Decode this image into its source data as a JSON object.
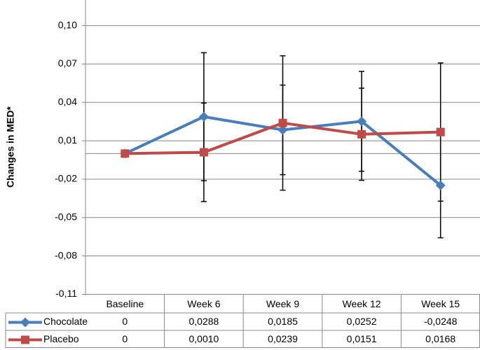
{
  "chart_data": {
    "type": "line",
    "y_label": "Changes in MED*",
    "categories": [
      "Baseline",
      "Week 6",
      "Week 9",
      "Week 12",
      "Week 15"
    ],
    "series": [
      {
        "name": "Chocolate",
        "color": "#4a7ebb",
        "marker": "diamond",
        "values": [
          0,
          0.0288,
          0.0185,
          0.0252,
          -0.0248
        ],
        "value_labels": [
          "0",
          "0,0288",
          "0,0185",
          "0,0252",
          "-0,0248"
        ],
        "errors": [
          null,
          0.05,
          0.035,
          0.039,
          0.041
        ]
      },
      {
        "name": "Placebo",
        "color": "#be4b48",
        "marker": "square",
        "values": [
          0,
          0.001,
          0.0239,
          0.0151,
          0.0168
        ],
        "value_labels": [
          "0",
          "0,0010",
          "0,0239",
          "0,0151",
          "0,0168"
        ],
        "errors": [
          null,
          0.0385,
          0.0525,
          0.036,
          0.054
        ]
      }
    ],
    "ylim": [
      -0.11,
      0.12
    ],
    "yticks": [
      {
        "value": 0.1,
        "label": "0,10"
      },
      {
        "value": 0.07,
        "label": "0,07"
      },
      {
        "value": 0.04,
        "label": "0,04"
      },
      {
        "value": 0.01,
        "label": "0,01"
      },
      {
        "value": -0.02,
        "label": "-0,02"
      },
      {
        "value": -0.05,
        "label": "-0,05"
      },
      {
        "value": -0.08,
        "label": "-0,08"
      },
      {
        "value": -0.11,
        "label": "-0,11"
      }
    ],
    "grid": true
  }
}
